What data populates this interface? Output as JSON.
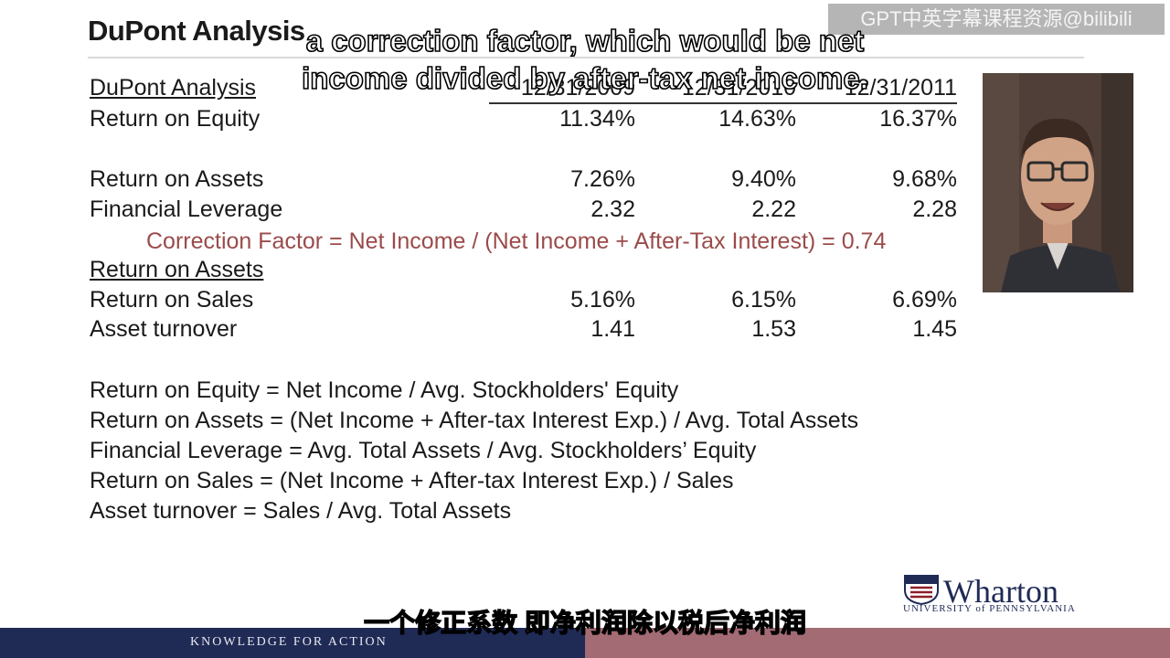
{
  "slide": {
    "title": "DuPont Analysis",
    "header": {
      "label": "DuPont Analysis",
      "dates": [
        "12/31/2009",
        "12/31/2010",
        "12/31/2011"
      ]
    },
    "rows": [
      {
        "label": "Return on Equity",
        "values": [
          "11.34%",
          "14.63%",
          "16.37%"
        ]
      },
      {
        "label": "Return on Assets",
        "values": [
          "7.26%",
          "9.40%",
          "9.68%"
        ]
      },
      {
        "label": "Financial Leverage",
        "values": [
          "2.32",
          "2.22",
          "2.28"
        ]
      },
      {
        "label": "Return on Sales",
        "values": [
          "5.16%",
          "6.15%",
          "6.69%"
        ]
      },
      {
        "label": "Asset turnover",
        "values": [
          "1.41",
          "1.53",
          "1.45"
        ]
      }
    ],
    "correction_factor": "Correction Factor = Net Income / (Net Income + After-Tax Interest) = 0.74",
    "section2_header": "Return on Assets",
    "formulas": [
      "Return on Equity = Net Income / Avg. Stockholders' Equity",
      "Return on Assets = (Net Income + After-tax Interest Exp.) / Avg. Total Assets",
      "Financial Leverage = Avg. Total Assets / Avg. Stockholders’ Equity",
      "Return on Sales =  (Net Income + After-tax Interest Exp.) / Sales",
      "Asset turnover = Sales / Avg. Total Assets"
    ],
    "logo": {
      "name": "Wharton",
      "subtitle": "UNIVERSITY of PENNSYLVANIA"
    },
    "footer": "KNOWLEDGE FOR ACTION"
  },
  "subtitles": {
    "english_line1": "a correction factor, which would be net",
    "english_line2": "income divided by after-tax net income.",
    "chinese": "一个修正系数 即净利润除以税后净利润"
  },
  "watermark": "GPT中英字幕课程资源@bilibili",
  "colors": {
    "brand_navy": "#1f2a55",
    "accent_rose": "#a36b74",
    "correction_text": "#9b4b4b"
  }
}
